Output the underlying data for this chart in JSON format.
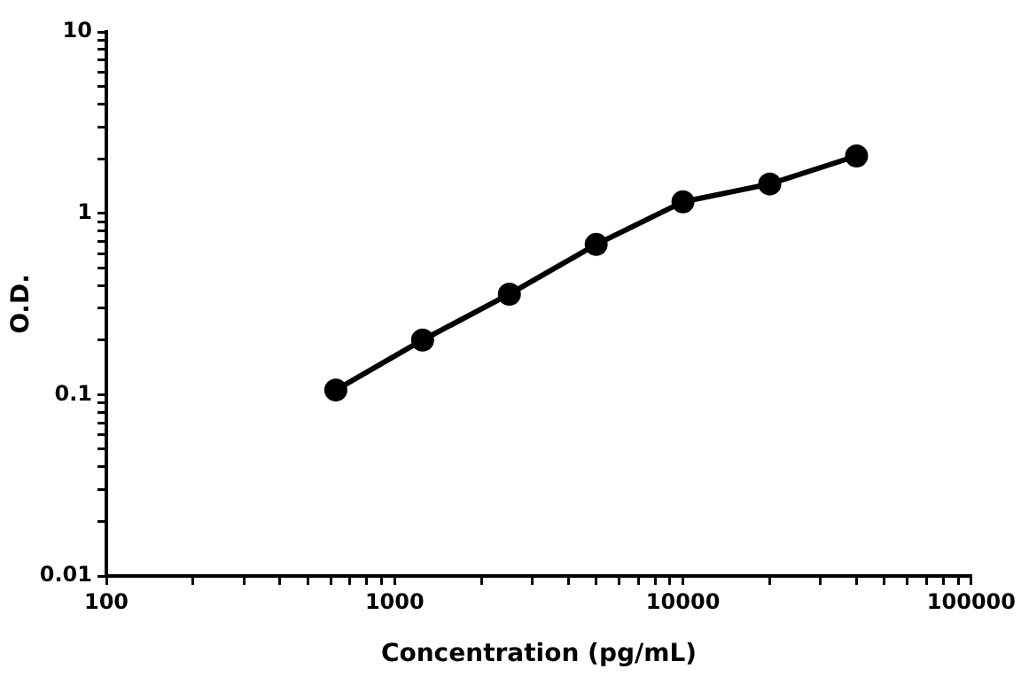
{
  "chart_data": {
    "type": "line",
    "xlabel": "Concentration (pg/mL)",
    "ylabel": "O.D.",
    "log": "xy",
    "grid": false,
    "legend": false,
    "marker": "circle",
    "line_style": "solid",
    "x": [
      625,
      1250,
      2500,
      5000,
      10000,
      20000,
      40000
    ],
    "series": [
      {
        "color": "#000000",
        "values": [
          0.106,
          0.2,
          0.358,
          0.673,
          1.156,
          1.45,
          2.07
        ]
      }
    ],
    "xlim": [
      100,
      100000
    ],
    "xticks": [
      100,
      {
        "value": 200,
        "label": null
      },
      {
        "value": 300,
        "label": null
      },
      {
        "value": 400,
        "label": null
      },
      {
        "value": 500,
        "label": null
      },
      {
        "value": 600,
        "label": null
      },
      {
        "value": 700,
        "label": null
      },
      {
        "value": 800,
        "label": null
      },
      {
        "value": 900,
        "label": null
      },
      1000,
      {
        "value": 2000,
        "label": null
      },
      {
        "value": 3000,
        "label": null
      },
      {
        "value": 4000,
        "label": null
      },
      {
        "value": 5000,
        "label": null
      },
      {
        "value": 6000,
        "label": null
      },
      {
        "value": 7000,
        "label": null
      },
      {
        "value": 8000,
        "label": null
      },
      {
        "value": 9000,
        "label": null
      },
      10000,
      {
        "value": 20000,
        "label": null
      },
      {
        "value": 30000,
        "label": null
      },
      {
        "value": 40000,
        "label": null
      },
      {
        "value": 50000,
        "label": null
      },
      {
        "value": 60000,
        "label": null
      },
      {
        "value": 70000,
        "label": null
      },
      {
        "value": 80000,
        "label": null
      },
      {
        "value": 90000,
        "label": null
      },
      100000
    ],
    "ylim": [
      0.01,
      10
    ],
    "yticks": [
      0.01,
      {
        "value": 0.02,
        "label": null
      },
      {
        "value": 0.03,
        "label": null
      },
      {
        "value": 0.04,
        "label": null
      },
      {
        "value": 0.05,
        "label": null
      },
      {
        "value": 0.06,
        "label": null
      },
      {
        "value": 0.07,
        "label": null
      },
      {
        "value": 0.08,
        "label": null
      },
      {
        "value": 0.09,
        "label": null
      },
      0.1,
      {
        "value": 0.2,
        "label": null
      },
      {
        "value": 0.3,
        "label": null
      },
      {
        "value": 0.4,
        "label": null
      },
      {
        "value": 0.5,
        "label": null
      },
      {
        "value": 0.6,
        "label": null
      },
      {
        "value": 0.7,
        "label": null
      },
      {
        "value": 0.8,
        "label": null
      },
      {
        "value": 0.9,
        "label": null
      },
      1,
      {
        "value": 2,
        "label": null
      },
      {
        "value": 3,
        "label": null
      },
      {
        "value": 4,
        "label": null
      },
      {
        "value": 5,
        "label": null
      },
      {
        "value": 6,
        "label": null
      },
      {
        "value": 7,
        "label": null
      },
      {
        "value": 8,
        "label": null
      },
      {
        "value": 9,
        "label": null
      },
      10
    ]
  }
}
